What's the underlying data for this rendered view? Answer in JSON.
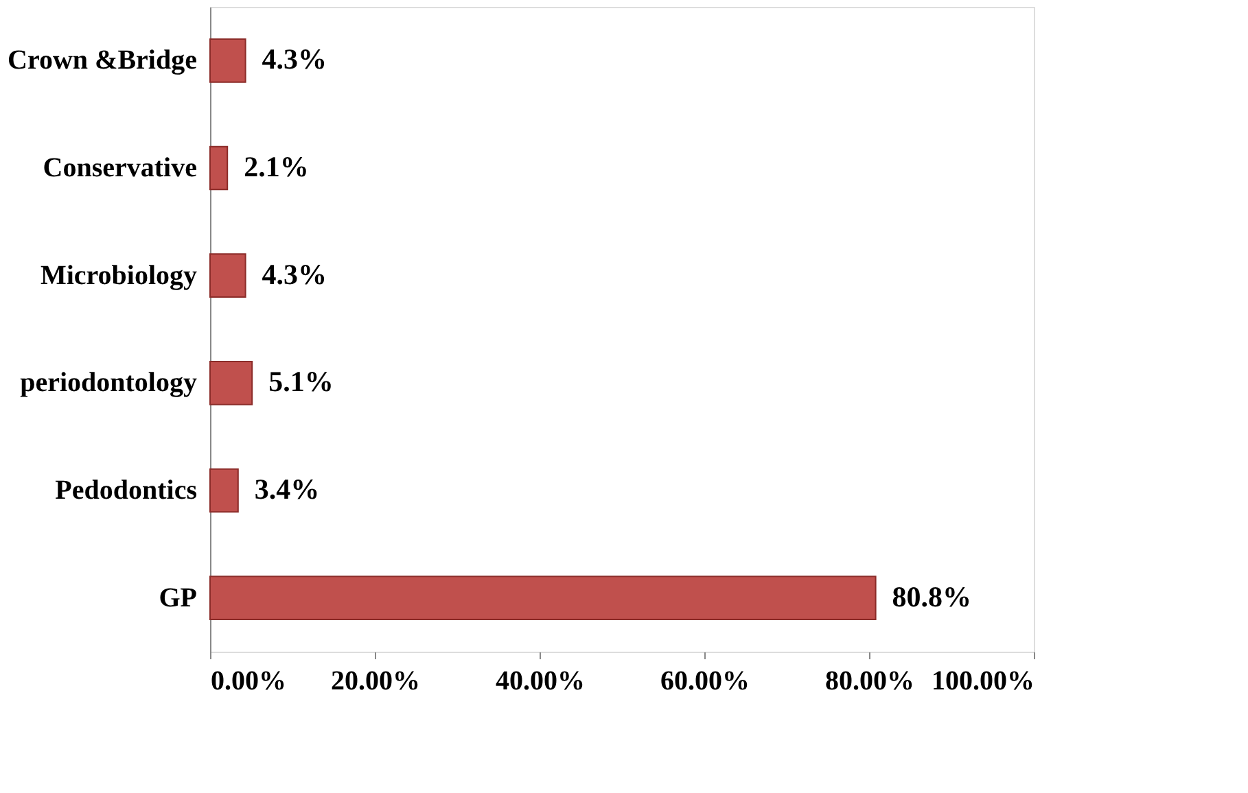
{
  "chart_data": {
    "type": "bar",
    "orientation": "horizontal",
    "categories": [
      "Crown &Bridge",
      "Conservative",
      "Microbiology",
      "periodontology",
      "Pedodontics",
      "GP"
    ],
    "values": [
      4.3,
      2.1,
      4.3,
      5.1,
      3.4,
      80.8
    ],
    "value_labels": [
      "4.3%",
      "2.1%",
      "4.3%",
      "5.1%",
      "3.4%",
      "80.8%"
    ],
    "color": "#c0504d",
    "xlim": [
      0,
      100
    ],
    "xticks": [
      {
        "value": 0,
        "label": "0.00%"
      },
      {
        "value": 20,
        "label": "20.00%"
      },
      {
        "value": 40,
        "label": "40.00%"
      },
      {
        "value": 60,
        "label": "60.00%"
      },
      {
        "value": 80,
        "label": "80.00%"
      },
      {
        "value": 100,
        "label": "100.00%"
      }
    ],
    "grid": false
  }
}
